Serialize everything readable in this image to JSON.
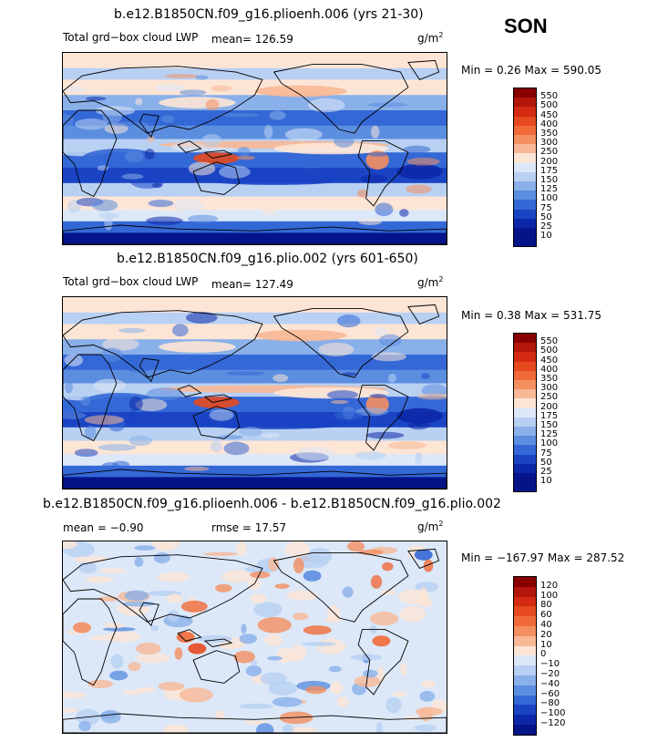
{
  "season": "SON",
  "panels": [
    {
      "title": "b.e12.B1850CN.f09_g16.plioenh.006 (yrs 21-30)",
      "variable": "Total grd−box cloud LWP",
      "mean": "mean=  126.59",
      "units": "g/m",
      "units_sup": "2",
      "minmax": "Min =   0.26  Max = 590.05",
      "levels": [
        "550",
        "500",
        "450",
        "400",
        "350",
        "300",
        "250",
        "200",
        "175",
        "150",
        "125",
        "100",
        "75",
        "50",
        "25",
        "10"
      ]
    },
    {
      "title": "b.e12.B1850CN.f09_g16.plio.002 (yrs 601-650)",
      "variable": "Total grd−box cloud LWP",
      "mean": "mean=  127.49",
      "units": "g/m",
      "units_sup": "2",
      "minmax": "Min =   0.38  Max = 531.75",
      "levels": [
        "550",
        "500",
        "450",
        "400",
        "350",
        "300",
        "250",
        "200",
        "175",
        "150",
        "125",
        "100",
        "75",
        "50",
        "25",
        "10"
      ]
    },
    {
      "title": "b.e12.B1850CN.f09_g16.plioenh.006 - b.e12.B1850CN.f09_g16.plio.002",
      "mean": "mean =   −0.90",
      "rmse": "rmse =   17.57",
      "units": "g/m",
      "units_sup": "2",
      "minmax": "Min = −167.97  Max = 287.52",
      "levels": [
        "120",
        "100",
        "80",
        "60",
        "40",
        "20",
        "10",
        "0",
        "−10",
        "−20",
        "−40",
        "−60",
        "−80",
        "−100",
        "−120"
      ]
    }
  ],
  "colors": {
    "abs_scale": [
      "#880000",
      "#b3160a",
      "#d42a12",
      "#e64a1e",
      "#f06a38",
      "#f48f60",
      "#f8b896",
      "#fde5d6",
      "#dce8f8",
      "#b8d0f2",
      "#8ab0ea",
      "#5c8ee0",
      "#3468d6",
      "#1a44c4",
      "#0c28a8",
      "#06148a"
    ],
    "diff_scale": [
      "#880000",
      "#b3160a",
      "#d42a12",
      "#e64a1e",
      "#f06a38",
      "#f48f60",
      "#f8b896",
      "#fde5d6",
      "#dce8f8",
      "#b8d0f2",
      "#8ab0ea",
      "#5c8ee0",
      "#3468d6",
      "#1a44c4",
      "#0c28a8",
      "#06148a"
    ]
  },
  "chart_data": [
    {
      "type": "heatmap",
      "title": "b.e12.B1850CN.f09_g16.plioenh.006 (yrs 21-30)",
      "season": "SON",
      "variable": "Total grd−box cloud LWP",
      "units": "g/m^2",
      "mean": 126.59,
      "min": 0.26,
      "max": 590.05,
      "contour_levels": [
        10,
        25,
        50,
        75,
        100,
        125,
        150,
        175,
        200,
        250,
        300,
        350,
        400,
        450,
        500,
        550
      ]
    },
    {
      "type": "heatmap",
      "title": "b.e12.B1850CN.f09_g16.plio.002 (yrs 601-650)",
      "season": "SON",
      "variable": "Total grd−box cloud LWP",
      "units": "g/m^2",
      "mean": 127.49,
      "min": 0.38,
      "max": 531.75,
      "contour_levels": [
        10,
        25,
        50,
        75,
        100,
        125,
        150,
        175,
        200,
        250,
        300,
        350,
        400,
        450,
        500,
        550
      ]
    },
    {
      "type": "heatmap",
      "title": "b.e12.B1850CN.f09_g16.plioenh.006 - b.e12.B1850CN.f09_g16.plio.002",
      "season": "SON",
      "units": "g/m^2",
      "mean": -0.9,
      "rmse": 17.57,
      "min": -167.97,
      "max": 287.52,
      "contour_levels": [
        -120,
        -100,
        -80,
        -60,
        -40,
        -20,
        -10,
        0,
        10,
        20,
        40,
        60,
        80,
        100,
        120
      ]
    }
  ]
}
